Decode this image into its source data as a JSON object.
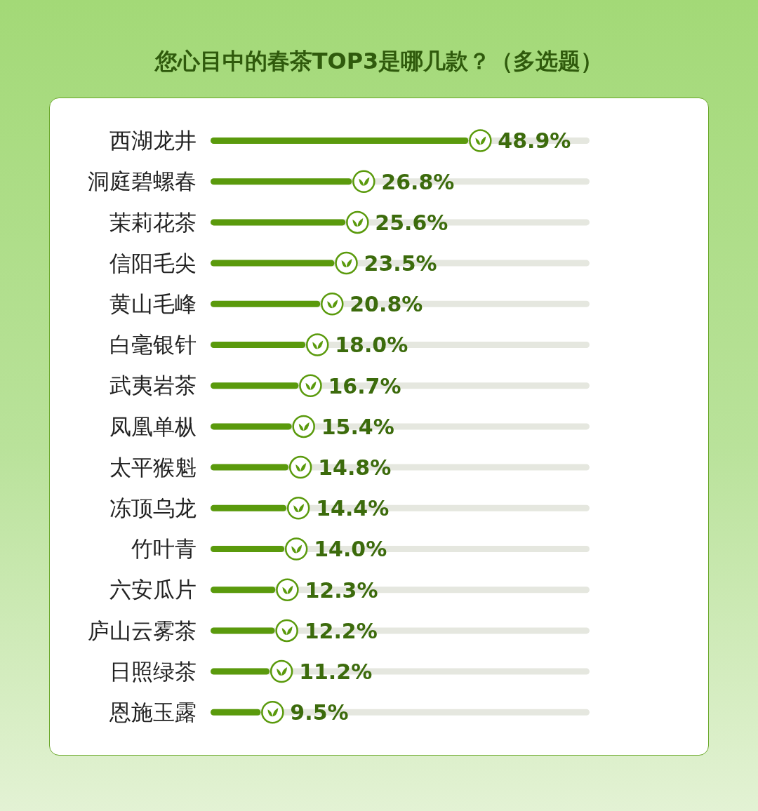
{
  "chart_data": {
    "type": "bar",
    "orientation": "horizontal",
    "title": "您心目中的春茶TOP3是哪几款？（多选题）",
    "categories": [
      "西湖龙井",
      "洞庭碧螺春",
      "茉莉花茶",
      "信阳毛尖",
      "黄山毛峰",
      "白毫银针",
      "武夷岩茶",
      "凤凰单枞",
      "太平猴魁",
      "冻顶乌龙",
      "竹叶青",
      "六安瓜片",
      "庐山云雾茶",
      "日照绿茶",
      "恩施玉露"
    ],
    "values": [
      48.9,
      26.8,
      25.6,
      23.5,
      20.8,
      18.0,
      16.7,
      15.4,
      14.8,
      14.4,
      14.0,
      12.3,
      12.2,
      11.2,
      9.5
    ],
    "value_labels": [
      "48.9%",
      "26.8%",
      "25.6%",
      "23.5%",
      "20.8%",
      "18.0%",
      "16.7%",
      "15.4%",
      "14.8%",
      "14.4%",
      "14.0%",
      "12.3%",
      "12.2%",
      "11.2%",
      "9.5%"
    ],
    "color": "#5a9a0c",
    "tick_labels": "y"
  }
}
